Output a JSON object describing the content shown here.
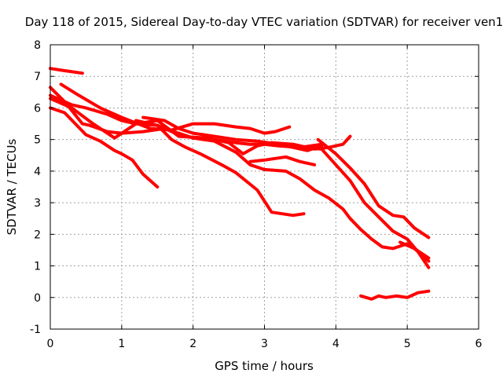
{
  "chart_data": {
    "type": "line",
    "title": "Day 118 of 2015, Sidereal Day-to-day VTEC variation (SDTVAR) for receiver ven1",
    "xlabel": "GPS time / hours",
    "ylabel": "SDTVAR / TECUs",
    "xlim": [
      0,
      6
    ],
    "ylim": [
      -1,
      8
    ],
    "xticks": [
      "0",
      "1",
      "2",
      "3",
      "4",
      "5",
      "6"
    ],
    "yticks": [
      "-1",
      "0",
      "1",
      "2",
      "3",
      "4",
      "5",
      "6",
      "7",
      "8"
    ],
    "grid": true,
    "legend": "none",
    "color": "#ff0000",
    "series": [
      {
        "name": "s1",
        "x": [
          0.0,
          0.2,
          0.45
        ],
        "y": [
          7.25,
          7.18,
          7.1
        ]
      },
      {
        "name": "s2",
        "x": [
          0.15,
          0.4,
          0.7,
          1.0,
          1.4,
          1.7,
          2.0,
          2.3,
          2.6,
          2.8,
          3.0,
          3.15,
          3.35
        ],
        "y": [
          6.75,
          6.4,
          6.0,
          5.7,
          5.35,
          5.3,
          5.5,
          5.5,
          5.4,
          5.35,
          5.2,
          5.25,
          5.4
        ]
      },
      {
        "name": "s3",
        "x": [
          0.0,
          0.2,
          0.45,
          0.55,
          0.8,
          1.0,
          1.3,
          1.6,
          2.0,
          2.3,
          2.6,
          2.8,
          3.0,
          3.2,
          3.5,
          3.8
        ],
        "y": [
          6.65,
          6.2,
          5.5,
          5.45,
          5.25,
          5.2,
          5.25,
          5.35,
          5.05,
          5.0,
          4.9,
          4.85,
          4.85,
          4.8,
          4.75,
          4.85
        ]
      },
      {
        "name": "s4",
        "x": [
          0.0,
          0.2,
          0.5,
          0.7,
          0.9,
          1.0,
          1.15,
          1.3,
          1.5
        ],
        "y": [
          6.0,
          5.85,
          5.15,
          4.95,
          4.65,
          4.55,
          4.35,
          3.9,
          3.5
        ]
      },
      {
        "name": "s5",
        "x": [
          0.0,
          0.3,
          0.5,
          0.8,
          1.0,
          1.2,
          1.5,
          1.8,
          2.2,
          2.5,
          2.7,
          2.9,
          3.1,
          3.4,
          3.6,
          3.8
        ],
        "y": [
          6.4,
          6.1,
          6.0,
          5.8,
          5.6,
          5.5,
          5.6,
          5.1,
          5.05,
          4.9,
          4.55,
          4.8,
          4.9,
          4.75,
          4.65,
          4.8
        ]
      },
      {
        "name": "s6",
        "x": [
          0.0,
          0.3,
          0.6,
          0.9,
          1.2,
          1.5,
          1.75,
          2.0,
          2.3,
          2.6,
          2.8,
          3.0,
          3.3,
          3.5,
          3.7,
          3.9,
          4.1,
          4.2,
          4.35,
          4.5,
          4.65,
          4.8,
          5.0,
          5.3
        ],
        "y": [
          6.3,
          6.0,
          5.5,
          5.05,
          5.5,
          5.45,
          5.2,
          5.05,
          4.95,
          4.6,
          4.2,
          4.05,
          4.0,
          3.75,
          3.4,
          3.15,
          2.8,
          2.5,
          2.15,
          1.85,
          1.6,
          1.55,
          1.7,
          1.25
        ]
      },
      {
        "name": "s7",
        "x": [
          1.2,
          1.5,
          1.7,
          1.9,
          2.1,
          2.4,
          2.6,
          2.9,
          3.1,
          3.4,
          3.55
        ],
        "y": [
          5.6,
          5.45,
          5.0,
          4.75,
          4.55,
          4.2,
          3.95,
          3.4,
          2.7,
          2.6,
          2.65
        ]
      },
      {
        "name": "s8",
        "x": [
          1.3,
          1.6,
          1.8,
          2.0,
          2.3,
          2.6,
          2.9,
          3.2,
          3.5,
          3.8,
          4.0,
          4.2,
          4.4,
          4.6,
          4.8,
          5.0,
          5.15,
          5.3
        ],
        "y": [
          5.7,
          5.6,
          5.35,
          5.2,
          5.1,
          5.0,
          4.95,
          4.85,
          4.75,
          4.7,
          4.2,
          3.7,
          3.0,
          2.55,
          2.1,
          1.85,
          1.45,
          0.95
        ]
      },
      {
        "name": "s9",
        "x": [
          2.8,
          3.0,
          3.3,
          3.5,
          3.7
        ],
        "y": [
          4.3,
          4.35,
          4.45,
          4.3,
          4.2
        ]
      },
      {
        "name": "s10",
        "x": [
          3.1,
          3.4,
          3.7,
          3.9,
          4.1,
          4.2
        ],
        "y": [
          4.9,
          4.85,
          4.7,
          4.75,
          4.85,
          5.1
        ]
      },
      {
        "name": "s11",
        "x": [
          3.75,
          4.0,
          4.2,
          4.4,
          4.6,
          4.8,
          4.95,
          5.1,
          5.3
        ],
        "y": [
          5.0,
          4.55,
          4.1,
          3.6,
          2.9,
          2.6,
          2.55,
          2.2,
          1.9
        ]
      },
      {
        "name": "s12",
        "x": [
          4.9,
          5.1,
          5.3
        ],
        "y": [
          1.75,
          1.55,
          1.15
        ]
      },
      {
        "name": "s13",
        "x": [
          4.35,
          4.5,
          4.6,
          4.7,
          4.85,
          5.0,
          5.15,
          5.3
        ],
        "y": [
          0.05,
          -0.05,
          0.05,
          0.0,
          0.05,
          0.0,
          0.15,
          0.2
        ]
      }
    ]
  }
}
